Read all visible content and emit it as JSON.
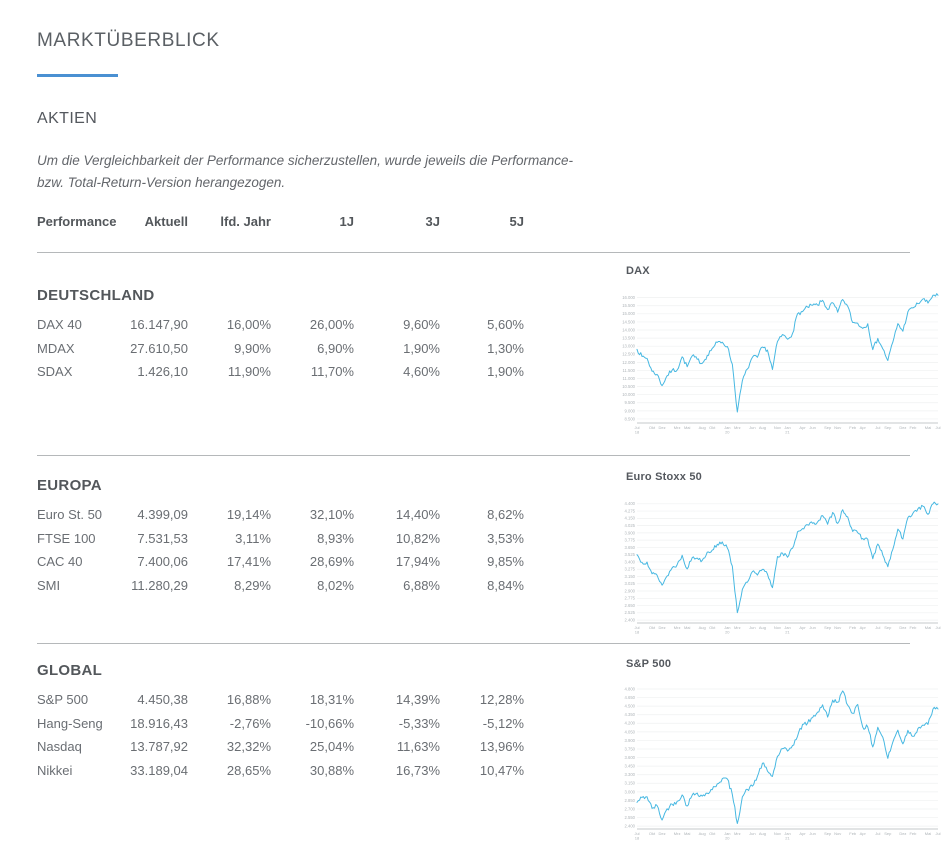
{
  "page": {
    "title": "MARKTÜBERBLICK",
    "section_heading": "AKTIEN",
    "note_line1": "Um die Vergleichbarkeit der Performance sicherzustellen, wurde jeweils die Performance-",
    "note_line2": "bzw. Total-Return-Version herangezogen.",
    "accent_color": "#4a90d2"
  },
  "table": {
    "headers": [
      "Performance",
      "Aktuell",
      "lfd. Jahr",
      "1J",
      "3J",
      "5J"
    ],
    "sections": [
      {
        "title": "DEUTSCHLAND",
        "rows": [
          {
            "name": "DAX 40",
            "values": [
              "16.147,90",
              "16,00%",
              "26,00%",
              "9,60%",
              "5,60%"
            ]
          },
          {
            "name": "MDAX",
            "values": [
              "27.610,50",
              "9,90%",
              "6,90%",
              "1,90%",
              "1,30%"
            ]
          },
          {
            "name": "SDAX",
            "values": [
              "1.426,10",
              "11,90%",
              "11,70%",
              "4,60%",
              "1,90%"
            ]
          }
        ]
      },
      {
        "title": "EUROPA",
        "rows": [
          {
            "name": "Euro St. 50",
            "values": [
              "4.399,09",
              "19,14%",
              "32,10%",
              "14,40%",
              "8,62%"
            ]
          },
          {
            "name": "FTSE 100",
            "values": [
              "7.531,53",
              "3,11%",
              "8,93%",
              "10,82%",
              "3,53%"
            ]
          },
          {
            "name": "CAC 40",
            "values": [
              "7.400,06",
              "17,41%",
              "28,69%",
              "17,94%",
              "9,85%"
            ]
          },
          {
            "name": "SMI",
            "values": [
              "11.280,29",
              "8,29%",
              "8,02%",
              "6,88%",
              "8,84%"
            ]
          }
        ]
      },
      {
        "title": "GLOBAL",
        "rows": [
          {
            "name": "S&P 500",
            "values": [
              "4.450,38",
              "16,88%",
              "18,31%",
              "14,39%",
              "12,28%"
            ]
          },
          {
            "name": "Hang-Seng",
            "values": [
              "18.916,43",
              "-2,76%",
              "-10,66%",
              "-5,33%",
              "-5,12%"
            ]
          },
          {
            "name": "Nasdaq",
            "values": [
              "13.787,92",
              "32,32%",
              "25,04%",
              "11,63%",
              "13,96%"
            ]
          },
          {
            "name": "Nikkei",
            "values": [
              "33.189,04",
              "28,65%",
              "30,88%",
              "16,73%",
              "10,47%"
            ]
          }
        ]
      }
    ]
  },
  "chart_data": [
    {
      "type": "line",
      "title": "DAX",
      "x_start": "2018-07",
      "x_interval": "monthly",
      "line_color": "#47b8e2",
      "ylim": [
        8250,
        16350
      ],
      "yticks": [
        8500,
        9000,
        9500,
        10000,
        10500,
        11000,
        11500,
        12000,
        12500,
        13000,
        13500,
        14000,
        14500,
        15000,
        15500,
        16000
      ],
      "values": [
        12805,
        12364,
        12247,
        11447,
        11257,
        10559,
        11173,
        11516,
        11526,
        12344,
        11727,
        12399,
        12189,
        11939,
        12428,
        12867,
        13236,
        13249,
        12982,
        11890,
        8928,
        10862,
        11587,
        12311,
        12313,
        12945,
        12761,
        11556,
        13291,
        13719,
        13432,
        13786,
        15008,
        15136,
        15421,
        15531,
        15544,
        15835,
        15261,
        15689,
        15100,
        15885,
        15471,
        14461,
        14415,
        14098,
        14388,
        12784,
        13484,
        12835,
        12114,
        13254,
        14397,
        13924,
        15128,
        15365,
        15629,
        15922,
        15664,
        16148,
        16148
      ]
    },
    {
      "type": "line",
      "title": "Euro Stoxx 50",
      "x_start": "2018-07",
      "x_interval": "monthly",
      "line_color": "#47b8e2",
      "ylim": [
        2350,
        4500
      ],
      "yticks": [
        2400,
        2525,
        2650,
        2775,
        2900,
        3025,
        3150,
        3275,
        3400,
        3525,
        3650,
        3775,
        3900,
        4025,
        4150,
        4275,
        4400
      ],
      "values": [
        3525,
        3393,
        3399,
        3197,
        3173,
        3001,
        3159,
        3298,
        3352,
        3515,
        3280,
        3474,
        3467,
        3427,
        3569,
        3604,
        3704,
        3745,
        3641,
        3329,
        2528,
        2928,
        3050,
        3234,
        3174,
        3273,
        3193,
        2958,
        3493,
        3553,
        3481,
        3636,
        3919,
        3974,
        4039,
        4064,
        4089,
        4196,
        4048,
        4251,
        4063,
        4298,
        4175,
        3924,
        3903,
        3803,
        3789,
        3455,
        3708,
        3517,
        3318,
        3618,
        3965,
        3794,
        4163,
        4238,
        4315,
        4359,
        4218,
        4399,
        4399
      ]
    },
    {
      "type": "line",
      "title": "S&P 500",
      "x_start": "2018-07",
      "x_interval": "monthly",
      "line_color": "#47b8e2",
      "ylim": [
        2350,
        4870
      ],
      "yticks": [
        2400,
        2550,
        2700,
        2850,
        3000,
        3150,
        3300,
        3450,
        3600,
        3750,
        3900,
        4050,
        4200,
        4350,
        4500,
        4650,
        4800
      ],
      "values": [
        2816,
        2902,
        2914,
        2712,
        2760,
        2507,
        2704,
        2784,
        2834,
        2946,
        2752,
        2942,
        2980,
        2926,
        2977,
        3038,
        3141,
        3231,
        3226,
        2954,
        2447,
        2912,
        3044,
        3100,
        3271,
        3500,
        3363,
        3270,
        3622,
        3756,
        3714,
        3811,
        3973,
        4181,
        4204,
        4298,
        4395,
        4523,
        4308,
        4605,
        4567,
        4766,
        4516,
        4374,
        4530,
        4132,
        4132,
        3785,
        4130,
        3955,
        3586,
        3872,
        4080,
        3840,
        4077,
        3970,
        4109,
        4169,
        4180,
        4450,
        4450
      ]
    }
  ]
}
